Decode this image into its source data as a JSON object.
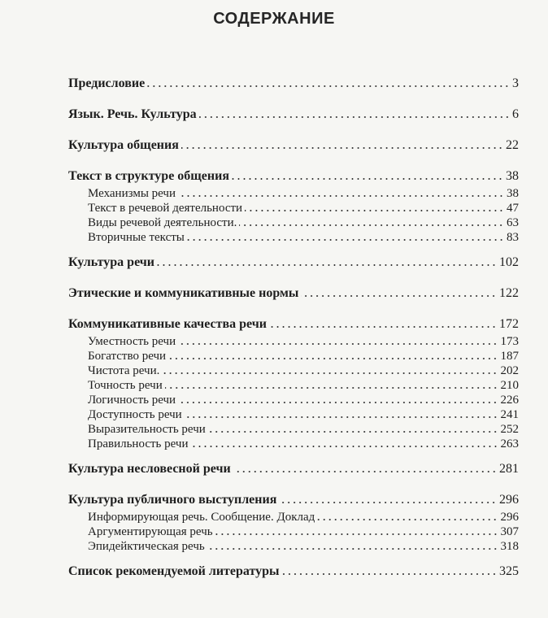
{
  "title": "СОДЕРЖАНИЕ",
  "entries": [
    {
      "label": "Предисловие",
      "page": "3",
      "level": 1
    },
    {
      "label": "Язык. Речь. Культура",
      "page": "6",
      "level": 1
    },
    {
      "label": "Культура общения",
      "page": "22",
      "level": 1
    },
    {
      "label": "Текст в структуре общения",
      "page": "38",
      "level": 1
    },
    {
      "label": "Механизмы речи",
      "page": "38",
      "level": 2
    },
    {
      "label": "Текст в речевой деятельности",
      "page": "47",
      "level": 2
    },
    {
      "label": "Виды речевой деятельности.",
      "page": "63",
      "level": 2
    },
    {
      "label": "Вторичные тексты",
      "page": "83",
      "level": 2
    },
    {
      "label": "Культура речи",
      "page": "102",
      "level": 1
    },
    {
      "label": "Этические и коммуникативные нормы",
      "page": "122",
      "level": 1
    },
    {
      "label": "Коммуникативные качества речи",
      "page": "172",
      "level": 1
    },
    {
      "label": "Уместность речи",
      "page": "173",
      "level": 2
    },
    {
      "label": "Богатство речи",
      "page": "187",
      "level": 2
    },
    {
      "label": "Чистота речи.",
      "page": "202",
      "level": 2
    },
    {
      "label": "Точность речи",
      "page": "210",
      "level": 2
    },
    {
      "label": "Логичность речи",
      "page": "226",
      "level": 2
    },
    {
      "label": "Доступность речи",
      "page": "241",
      "level": 2
    },
    {
      "label": "Выразительность речи",
      "page": "252",
      "level": 2
    },
    {
      "label": "Правильность речи",
      "page": "263",
      "level": 2
    },
    {
      "label": "Культура несловесной речи",
      "page": "281",
      "level": 1
    },
    {
      "label": "Культура публичного выступления",
      "page": "296",
      "level": 1
    },
    {
      "label": "Информирующая речь. Сообщение. Доклад",
      "page": "296",
      "level": 2
    },
    {
      "label": "Аргументирующая речь",
      "page": "307",
      "level": 2
    },
    {
      "label": "Эпидейктическая речь",
      "page": "318",
      "level": 2
    },
    {
      "label": "Список рекомендуемой литературы",
      "page": "325",
      "level": 1
    }
  ]
}
